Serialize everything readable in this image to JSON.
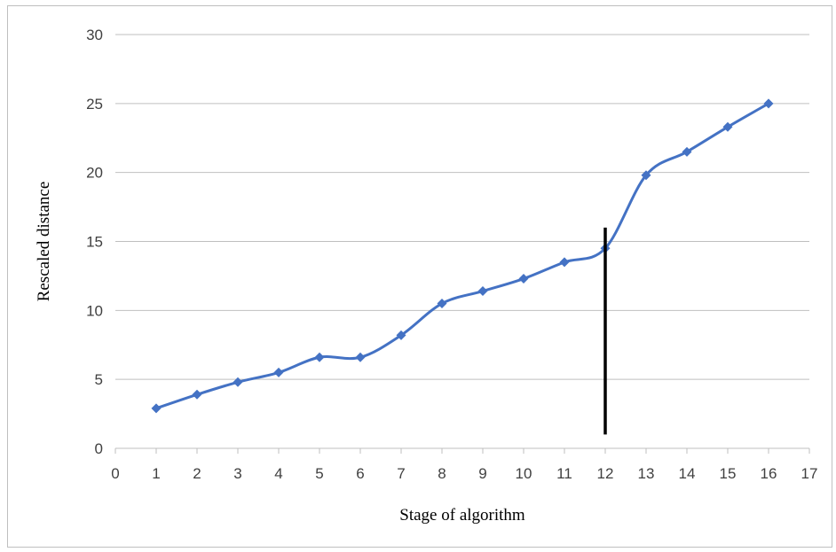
{
  "chart_data": {
    "type": "line",
    "title": "",
    "xlabel": "Stage of algorithm",
    "ylabel": "Rescaled distance",
    "xlim": [
      0,
      17
    ],
    "ylim": [
      0,
      30
    ],
    "x_ticks": [
      "0",
      "1",
      "2",
      "3",
      "4",
      "5",
      "6",
      "7",
      "8",
      "9",
      "10",
      "11",
      "12",
      "13",
      "14",
      "15",
      "16",
      "17"
    ],
    "y_ticks": [
      "0",
      "5",
      "10",
      "15",
      "20",
      "25",
      "30"
    ],
    "grid": "horizontal",
    "legend": "none",
    "smoothed": true,
    "series": [
      {
        "x": [
          1,
          2,
          3,
          4,
          5,
          6,
          7,
          8,
          9,
          10,
          11,
          12,
          13,
          14,
          15,
          16
        ],
        "values": [
          2.9,
          3.9,
          4.8,
          5.5,
          6.6,
          6.6,
          8.2,
          10.5,
          11.4,
          12.3,
          13.5,
          14.5,
          19.8,
          21.5,
          23.3,
          25.0
        ],
        "color": "#4472C4",
        "marker": "diamond"
      }
    ],
    "annotations": [
      {
        "type": "vertical-line",
        "x": 12,
        "y_from": 1,
        "y_to": 16,
        "color": "#000000"
      }
    ]
  }
}
